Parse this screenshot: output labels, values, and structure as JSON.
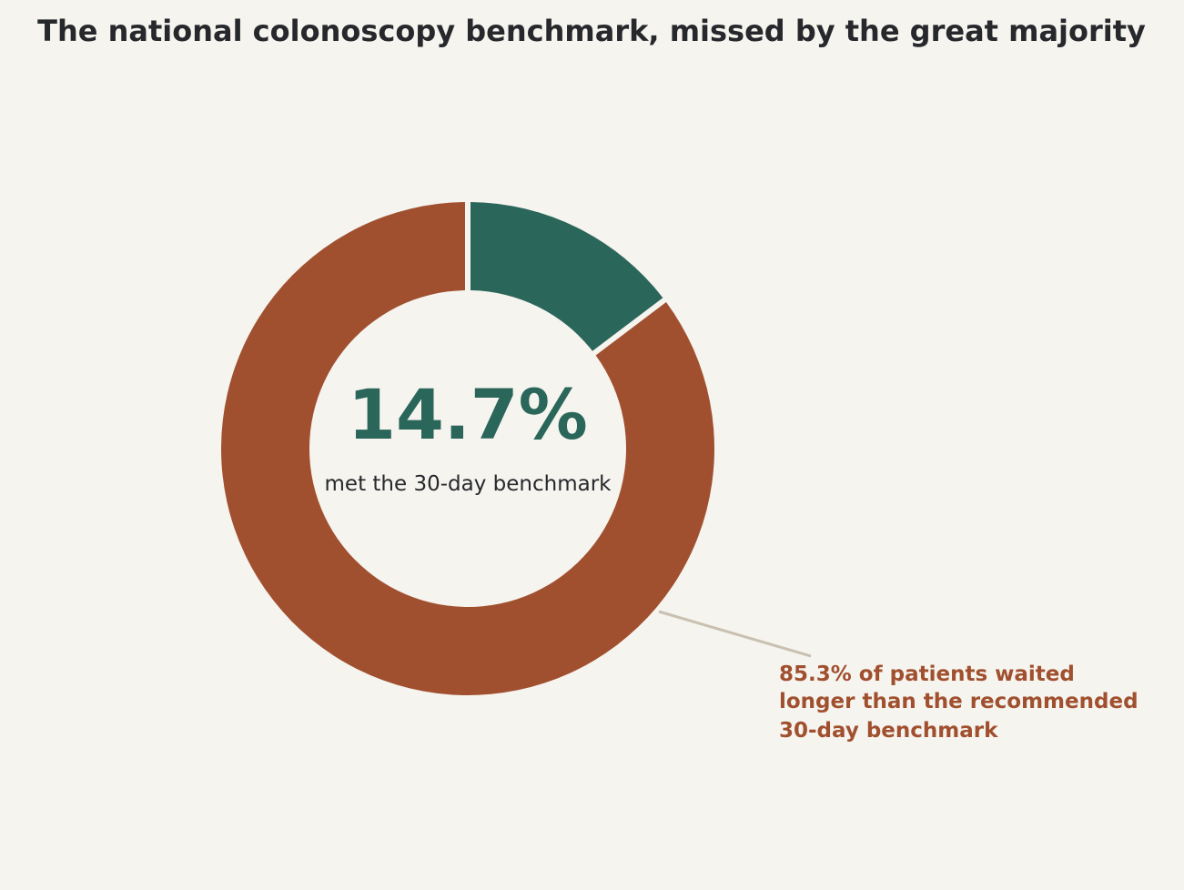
{
  "chart_data": {
    "type": "pie",
    "title": "The national colonoscopy benchmark, missed by the great majority",
    "slices": [
      {
        "label": "met the 30-day benchmark",
        "value": 14.7,
        "color": "#2a6659"
      },
      {
        "label": "waited longer than the recommended 30-day benchmark",
        "value": 85.3,
        "color": "#a0502f"
      }
    ],
    "donut": true,
    "center_value": "14.7%",
    "center_label": "met the 30-day benchmark",
    "annotation": {
      "lines": [
        "85.3% of patients waited",
        "longer than the recommended",
        "30-day benchmark"
      ],
      "color": "#a0502f"
    },
    "colors": {
      "background": "#f6f4ef",
      "title": "#26282c",
      "center_label": "#26282c",
      "leader_line": "#c8c0b0"
    }
  }
}
